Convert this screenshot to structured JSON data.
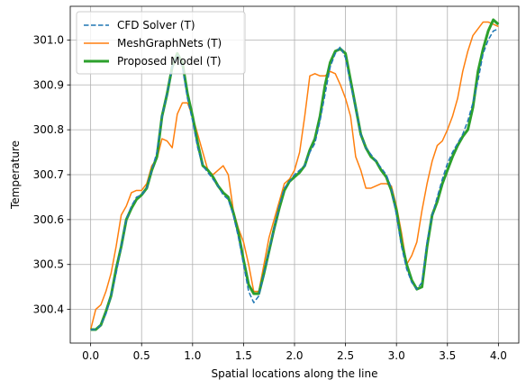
{
  "chart_data": {
    "type": "line",
    "title": "",
    "xlabel": "Spatial locations along the line",
    "ylabel": "Temperature",
    "xlim": [
      -0.2,
      4.2
    ],
    "ylim": [
      300.325,
      301.075
    ],
    "xticks": [
      0.0,
      0.5,
      1.0,
      1.5,
      2.0,
      2.5,
      3.0,
      3.5,
      4.0
    ],
    "xtick_labels": [
      "0.0",
      "0.5",
      "1.0",
      "1.5",
      "2.0",
      "2.5",
      "3.0",
      "3.5",
      "4.0"
    ],
    "yticks": [
      300.4,
      300.5,
      300.6,
      300.7,
      300.8,
      300.9,
      301.0
    ],
    "ytick_labels": [
      "300.4",
      "300.5",
      "300.6",
      "300.7",
      "300.8",
      "300.9",
      "301.0"
    ],
    "grid": true,
    "legend_position": "top-left",
    "series": [
      {
        "name": "CFD Solver (T)",
        "color": "#1f77b4",
        "style": "dashed",
        "width": 1.5,
        "x": [
          0.0,
          0.05,
          0.1,
          0.15,
          0.2,
          0.25,
          0.3,
          0.35,
          0.4,
          0.45,
          0.5,
          0.55,
          0.6,
          0.65,
          0.7,
          0.75,
          0.8,
          0.85,
          0.9,
          0.95,
          1.0,
          1.05,
          1.1,
          1.15,
          1.2,
          1.25,
          1.3,
          1.35,
          1.4,
          1.45,
          1.5,
          1.55,
          1.6,
          1.65,
          1.7,
          1.75,
          1.8,
          1.85,
          1.9,
          1.95,
          2.0,
          2.05,
          2.1,
          2.15,
          2.2,
          2.25,
          2.3,
          2.35,
          2.4,
          2.45,
          2.5,
          2.55,
          2.6,
          2.65,
          2.7,
          2.75,
          2.8,
          2.85,
          2.9,
          2.95,
          3.0,
          3.05,
          3.1,
          3.15,
          3.2,
          3.25,
          3.3,
          3.35,
          3.4,
          3.45,
          3.5,
          3.55,
          3.6,
          3.65,
          3.7,
          3.75,
          3.8,
          3.85,
          3.9,
          3.95,
          4.0
        ],
        "values": [
          300.355,
          300.355,
          300.365,
          300.39,
          300.43,
          300.48,
          300.54,
          300.6,
          300.63,
          300.65,
          300.655,
          300.67,
          300.71,
          300.75,
          300.83,
          300.88,
          300.94,
          300.965,
          300.94,
          300.87,
          300.82,
          300.76,
          300.72,
          300.705,
          300.69,
          300.675,
          300.655,
          300.645,
          300.61,
          300.56,
          300.5,
          300.44,
          300.415,
          300.43,
          300.48,
          300.53,
          300.58,
          300.63,
          300.67,
          300.685,
          300.7,
          300.71,
          300.72,
          300.75,
          300.77,
          300.82,
          300.88,
          300.94,
          300.97,
          300.985,
          300.96,
          300.9,
          300.85,
          300.79,
          300.76,
          300.745,
          300.73,
          300.715,
          300.7,
          300.67,
          300.61,
          300.54,
          300.49,
          300.46,
          300.445,
          300.46,
          300.55,
          300.61,
          300.65,
          300.69,
          300.725,
          300.75,
          300.77,
          300.79,
          300.82,
          300.86,
          300.91,
          300.97,
          301.0,
          301.02,
          301.025
        ]
      },
      {
        "name": "MeshGraphNets (T)",
        "color": "#ff7f0e",
        "style": "solid",
        "width": 1.5,
        "x": [
          0.0,
          0.05,
          0.1,
          0.15,
          0.2,
          0.25,
          0.3,
          0.35,
          0.4,
          0.45,
          0.5,
          0.55,
          0.6,
          0.65,
          0.7,
          0.75,
          0.8,
          0.85,
          0.9,
          0.95,
          1.0,
          1.05,
          1.1,
          1.15,
          1.2,
          1.25,
          1.3,
          1.35,
          1.4,
          1.45,
          1.5,
          1.55,
          1.6,
          1.65,
          1.7,
          1.75,
          1.8,
          1.85,
          1.9,
          1.95,
          2.0,
          2.05,
          2.1,
          2.15,
          2.2,
          2.25,
          2.3,
          2.35,
          2.4,
          2.45,
          2.5,
          2.55,
          2.6,
          2.65,
          2.7,
          2.75,
          2.8,
          2.85,
          2.9,
          2.95,
          3.0,
          3.05,
          3.1,
          3.15,
          3.2,
          3.25,
          3.3,
          3.35,
          3.4,
          3.45,
          3.5,
          3.55,
          3.6,
          3.65,
          3.7,
          3.75,
          3.8,
          3.85,
          3.9,
          3.95,
          4.0
        ],
        "values": [
          300.355,
          300.4,
          300.41,
          300.44,
          300.48,
          300.54,
          300.61,
          300.63,
          300.66,
          300.665,
          300.665,
          300.68,
          300.72,
          300.735,
          300.78,
          300.775,
          300.76,
          300.835,
          300.86,
          300.86,
          300.83,
          300.79,
          300.75,
          300.71,
          300.7,
          300.71,
          300.72,
          300.7,
          300.62,
          300.58,
          300.55,
          300.5,
          300.44,
          300.44,
          300.5,
          300.56,
          300.6,
          300.64,
          300.68,
          300.69,
          300.71,
          300.75,
          300.83,
          300.92,
          300.925,
          300.92,
          300.92,
          300.93,
          300.925,
          300.9,
          300.87,
          300.83,
          300.74,
          300.71,
          300.67,
          300.67,
          300.675,
          300.68,
          300.68,
          300.675,
          300.63,
          300.57,
          300.5,
          300.52,
          300.55,
          300.62,
          300.68,
          300.73,
          300.765,
          300.775,
          300.8,
          300.83,
          300.87,
          300.93,
          300.975,
          301.01,
          301.025,
          301.04,
          301.04,
          301.035,
          301.03
        ]
      },
      {
        "name": "Proposed Model (T)",
        "color": "#2ca02c",
        "style": "solid",
        "width": 3,
        "x": [
          0.0,
          0.05,
          0.1,
          0.15,
          0.2,
          0.25,
          0.3,
          0.35,
          0.4,
          0.45,
          0.5,
          0.55,
          0.6,
          0.65,
          0.7,
          0.75,
          0.8,
          0.85,
          0.9,
          0.95,
          1.0,
          1.05,
          1.1,
          1.15,
          1.2,
          1.25,
          1.3,
          1.35,
          1.4,
          1.45,
          1.5,
          1.55,
          1.6,
          1.65,
          1.7,
          1.75,
          1.8,
          1.85,
          1.9,
          1.95,
          2.0,
          2.05,
          2.1,
          2.15,
          2.2,
          2.25,
          2.3,
          2.35,
          2.4,
          2.45,
          2.5,
          2.55,
          2.6,
          2.65,
          2.7,
          2.75,
          2.8,
          2.85,
          2.9,
          2.95,
          3.0,
          3.05,
          3.1,
          3.15,
          3.2,
          3.25,
          3.3,
          3.35,
          3.4,
          3.45,
          3.5,
          3.55,
          3.6,
          3.65,
          3.7,
          3.75,
          3.8,
          3.85,
          3.9,
          3.95,
          4.0
        ],
        "values": [
          300.355,
          300.355,
          300.365,
          300.395,
          300.43,
          300.49,
          300.54,
          300.6,
          300.625,
          300.645,
          300.655,
          300.67,
          300.71,
          300.74,
          300.83,
          300.88,
          300.94,
          300.97,
          300.95,
          300.88,
          300.83,
          300.77,
          300.72,
          300.71,
          300.695,
          300.675,
          300.66,
          300.65,
          300.615,
          300.57,
          300.51,
          300.455,
          300.435,
          300.435,
          300.48,
          300.53,
          300.58,
          300.625,
          300.665,
          300.685,
          300.695,
          300.705,
          300.72,
          300.755,
          300.78,
          300.83,
          300.9,
          300.95,
          300.975,
          300.98,
          300.97,
          300.91,
          300.85,
          300.79,
          300.76,
          300.74,
          300.73,
          300.71,
          300.695,
          300.665,
          300.62,
          300.55,
          300.5,
          300.465,
          300.445,
          300.45,
          300.54,
          300.61,
          300.64,
          300.68,
          300.71,
          300.74,
          300.765,
          300.785,
          300.8,
          300.85,
          300.93,
          300.98,
          301.02,
          301.045,
          301.035
        ]
      }
    ]
  }
}
